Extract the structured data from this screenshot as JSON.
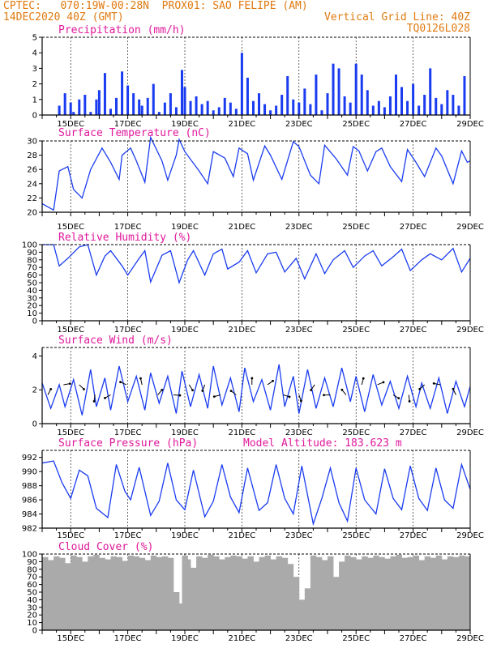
{
  "header": {
    "left_line1": "CPTEC:   070:19W-00:28N  PROX01: SAO FELIPE (AM)",
    "left_line2": "14DEC2020 40Z (GMT)",
    "right_line2": "Vertical Grid Line: 40Z",
    "right_line3": "TQ0126L028"
  },
  "colors": {
    "header": "#e07a10",
    "title": "#e0189b",
    "series": "#1a3cf0",
    "cloud": "#aaaaaa"
  },
  "chart_data": [
    {
      "type": "bar",
      "id": "precip",
      "title": "Precipitation (mm/h)",
      "ylim": [
        0,
        5
      ],
      "yticks": [
        0,
        1,
        2,
        3,
        4,
        5
      ],
      "xticks": [
        "15DEC",
        "17DEC",
        "19DEC",
        "21DEC",
        "23DEC",
        "25DEC",
        "27DEC",
        "29DEC"
      ],
      "x": [
        14.6,
        14.8,
        15.0,
        15.1,
        15.3,
        15.5,
        15.7,
        15.9,
        16.0,
        16.2,
        16.4,
        16.6,
        16.8,
        17.0,
        17.2,
        17.4,
        17.5,
        17.7,
        17.9,
        18.1,
        18.3,
        18.5,
        18.7,
        18.9,
        19.0,
        19.2,
        19.4,
        19.6,
        19.8,
        20.0,
        20.2,
        20.4,
        20.6,
        20.8,
        21.0,
        21.2,
        21.4,
        21.6,
        21.8,
        22.0,
        22.2,
        22.4,
        22.6,
        22.8,
        23.0,
        23.2,
        23.4,
        23.6,
        23.8,
        24.0,
        24.2,
        24.4,
        24.6,
        24.8,
        25.0,
        25.2,
        25.4,
        25.6,
        25.8,
        26.0,
        26.2,
        26.4,
        26.6,
        26.8,
        27.0,
        27.2,
        27.4,
        27.6,
        27.8,
        28.0,
        28.2,
        28.4,
        28.6,
        28.8
      ],
      "values": [
        0.6,
        1.4,
        0.8,
        0.2,
        1.0,
        1.3,
        0.2,
        1.0,
        1.6,
        2.7,
        0.4,
        1.1,
        2.8,
        1.9,
        1.4,
        1.0,
        0.6,
        1.1,
        2.0,
        0.2,
        0.8,
        1.4,
        0.5,
        2.9,
        1.8,
        0.9,
        1.2,
        0.7,
        0.9,
        0.3,
        0.5,
        1.1,
        0.8,
        0.4,
        4.0,
        2.4,
        0.9,
        1.4,
        0.7,
        0.3,
        0.6,
        1.3,
        2.5,
        1.0,
        0.8,
        1.7,
        0.7,
        2.6,
        0.3,
        1.4,
        3.3,
        3.0,
        1.2,
        0.8,
        3.3,
        2.6,
        1.6,
        0.6,
        0.9,
        0.5,
        1.2,
        2.6,
        1.8,
        0.9,
        2.0,
        0.6,
        1.3,
        3.0,
        1.1,
        0.7,
        1.6,
        1.3,
        0.6,
        2.5
      ]
    },
    {
      "type": "line",
      "id": "temp",
      "title": "Surface Temperature (nC)",
      "ylim": [
        20,
        30
      ],
      "yticks": [
        20,
        22,
        24,
        26,
        28,
        30
      ],
      "xticks": [
        "15DEC",
        "17DEC",
        "19DEC",
        "21DEC",
        "23DEC",
        "25DEC",
        "27DEC",
        "29DEC"
      ],
      "x": [
        14.0,
        14.4,
        14.6,
        14.9,
        15.1,
        15.4,
        15.7,
        16.1,
        16.4,
        16.7,
        16.8,
        17.1,
        17.3,
        17.6,
        17.8,
        18.2,
        18.4,
        18.7,
        18.8,
        19.0,
        19.5,
        19.8,
        20.0,
        20.4,
        20.7,
        20.9,
        21.2,
        21.4,
        21.8,
        22.0,
        22.4,
        22.8,
        23.0,
        23.4,
        23.7,
        23.9,
        24.3,
        24.7,
        24.9,
        25.1,
        25.4,
        25.7,
        25.9,
        26.2,
        26.6,
        26.8,
        27.1,
        27.4,
        27.8,
        28.0,
        28.4,
        28.7,
        28.9,
        29.0
      ],
      "values": [
        21.2,
        20.3,
        25.8,
        26.4,
        23.2,
        22.0,
        26.0,
        29.0,
        27.0,
        24.6,
        28.0,
        29.0,
        27.2,
        24.2,
        30.5,
        27.2,
        24.5,
        28.0,
        30.2,
        28.5,
        25.8,
        24.0,
        28.5,
        27.6,
        25.0,
        29.0,
        28.2,
        24.5,
        29.3,
        28.0,
        24.6,
        29.9,
        29.2,
        25.2,
        24.0,
        29.4,
        27.5,
        25.2,
        29.2,
        28.6,
        25.8,
        28.5,
        29.0,
        26.4,
        24.3,
        28.8,
        27.0,
        25.0,
        29.0,
        27.9,
        24.0,
        28.6,
        27.0,
        27.2
      ]
    },
    {
      "type": "line",
      "id": "rh",
      "title": "Relative Humidity (%)",
      "ylim": [
        0,
        100
      ],
      "yticks": [
        0,
        10,
        20,
        30,
        40,
        50,
        60,
        70,
        80,
        90,
        100
      ],
      "xticks": [
        "15DEC",
        "17DEC",
        "19DEC",
        "21DEC",
        "23DEC",
        "25DEC",
        "27DEC",
        "29DEC"
      ],
      "x": [
        14.0,
        14.4,
        14.6,
        14.9,
        15.3,
        15.6,
        15.9,
        16.2,
        16.4,
        16.8,
        17.0,
        17.4,
        17.6,
        17.8,
        18.2,
        18.5,
        18.8,
        19.1,
        19.3,
        19.7,
        20.0,
        20.3,
        20.5,
        20.9,
        21.2,
        21.5,
        21.9,
        22.2,
        22.5,
        22.9,
        23.2,
        23.6,
        23.9,
        24.2,
        24.6,
        24.9,
        25.3,
        25.6,
        25.9,
        26.3,
        26.6,
        26.9,
        27.3,
        27.6,
        28.0,
        28.4,
        28.7,
        29.0
      ],
      "values": [
        100,
        100,
        72,
        82,
        97,
        100,
        60,
        85,
        92,
        72,
        60,
        82,
        92,
        51,
        86,
        92,
        50,
        80,
        92,
        60,
        88,
        94,
        68,
        77,
        92,
        63,
        88,
        90,
        64,
        82,
        55,
        88,
        62,
        80,
        92,
        70,
        85,
        92,
        72,
        84,
        94,
        66,
        80,
        88,
        80,
        95,
        64,
        82
      ]
    },
    {
      "type": "line",
      "id": "wind",
      "title": "Surface Wind (m/s)",
      "ylim": [
        0,
        4.5
      ],
      "yticks": [
        0,
        2,
        4
      ],
      "xticks": [
        "15DEC",
        "17DEC",
        "19DEC",
        "21DEC",
        "23DEC",
        "25DEC",
        "27DEC",
        "29DEC"
      ],
      "x": [
        14.0,
        14.3,
        14.6,
        14.8,
        15.1,
        15.4,
        15.7,
        15.9,
        16.2,
        16.4,
        16.7,
        17.0,
        17.3,
        17.6,
        17.8,
        18.1,
        18.4,
        18.7,
        18.9,
        19.2,
        19.5,
        19.8,
        20.0,
        20.3,
        20.6,
        20.9,
        21.1,
        21.4,
        21.7,
        22.0,
        22.3,
        22.5,
        22.8,
        23.0,
        23.3,
        23.6,
        23.9,
        24.2,
        24.5,
        24.8,
        25.0,
        25.3,
        25.6,
        25.9,
        26.2,
        26.5,
        26.8,
        27.1,
        27.3,
        27.6,
        27.9,
        28.2,
        28.5,
        28.8,
        29.0
      ],
      "values": [
        2.4,
        0.9,
        2.3,
        1.0,
        2.6,
        0.5,
        3.2,
        1.0,
        2.7,
        0.8,
        3.4,
        1.3,
        2.8,
        0.8,
        3.0,
        1.2,
        2.8,
        0.6,
        3.1,
        1.0,
        2.9,
        0.9,
        3.4,
        1.1,
        2.7,
        0.7,
        3.3,
        1.3,
        2.6,
        0.8,
        3.5,
        1.0,
        2.8,
        0.6,
        3.2,
        0.9,
        2.7,
        1.0,
        3.3,
        1.3,
        2.8,
        0.7,
        2.9,
        1.1,
        2.5,
        0.9,
        2.8,
        1.0,
        2.4,
        0.9,
        2.7,
        0.6,
        2.5,
        1.0,
        2.2
      ]
    },
    {
      "type": "line",
      "id": "pressure",
      "title": "Surface Pressure (hPa)",
      "annotation": "Model Altitude: 183.623 m",
      "ylim": [
        982,
        993
      ],
      "yticks": [
        982,
        984,
        986,
        988,
        990,
        992
      ],
      "xticks": [
        "15DEC",
        "17DEC",
        "19DEC",
        "21DEC",
        "23DEC",
        "25DEC",
        "27DEC",
        "29DEC"
      ],
      "x": [
        14.0,
        14.4,
        14.7,
        15.0,
        15.3,
        15.6,
        15.9,
        16.3,
        16.6,
        16.9,
        17.1,
        17.4,
        17.8,
        18.1,
        18.4,
        18.7,
        19.0,
        19.3,
        19.7,
        20.0,
        20.3,
        20.6,
        20.9,
        21.2,
        21.6,
        21.9,
        22.2,
        22.5,
        22.8,
        23.1,
        23.5,
        23.8,
        24.1,
        24.4,
        24.7,
        25.0,
        25.3,
        25.7,
        26.0,
        26.3,
        26.6,
        26.9,
        27.2,
        27.5,
        27.8,
        28.1,
        28.4,
        28.7,
        29.0
      ],
      "values": [
        991.2,
        991.5,
        988.4,
        986.2,
        990.2,
        989.4,
        984.8,
        983.5,
        991.0,
        987.2,
        986.0,
        990.6,
        983.8,
        985.8,
        991.2,
        986.0,
        984.6,
        990.2,
        983.6,
        985.8,
        991.0,
        986.4,
        984.2,
        990.5,
        984.5,
        985.6,
        991.0,
        986.2,
        984.0,
        990.8,
        982.6,
        986.2,
        990.5,
        985.6,
        983.0,
        990.5,
        986.0,
        984.0,
        990.4,
        986.2,
        984.6,
        990.8,
        986.2,
        984.5,
        990.5,
        986.0,
        984.8,
        991.0,
        987.5
      ]
    },
    {
      "type": "bar",
      "id": "cloud",
      "title": "Cloud Cover (%)",
      "ylim": [
        0,
        100
      ],
      "yticks": [
        0,
        10,
        20,
        30,
        40,
        50,
        60,
        70,
        80,
        90,
        100
      ],
      "xticks": [
        "15DEC",
        "17DEC",
        "19DEC",
        "21DEC",
        "23DEC",
        "25DEC",
        "27DEC",
        "29DEC"
      ],
      "x": [
        14.0,
        14.2,
        14.4,
        14.6,
        14.8,
        15.0,
        15.2,
        15.4,
        15.6,
        15.8,
        16.0,
        16.2,
        16.4,
        16.6,
        16.8,
        17.0,
        17.2,
        17.4,
        17.6,
        17.8,
        18.0,
        18.2,
        18.4,
        18.6,
        18.7,
        18.8,
        18.9,
        19.0,
        19.2,
        19.4,
        19.6,
        19.8,
        20.0,
        20.2,
        20.4,
        20.6,
        20.8,
        21.0,
        21.2,
        21.4,
        21.6,
        21.8,
        22.0,
        22.2,
        22.4,
        22.6,
        22.8,
        23.0,
        23.2,
        23.4,
        23.6,
        23.8,
        24.0,
        24.2,
        24.4,
        24.6,
        24.8,
        25.0,
        25.2,
        25.4,
        25.6,
        25.8,
        26.0,
        26.2,
        26.4,
        26.6,
        26.8,
        27.0,
        27.2,
        27.4,
        27.6,
        27.8,
        28.0,
        28.2,
        28.4,
        28.6,
        28.8
      ],
      "values": [
        96,
        92,
        97,
        95,
        88,
        98,
        96,
        90,
        97,
        99,
        95,
        93,
        97,
        96,
        91,
        98,
        97,
        95,
        92,
        98,
        96,
        97,
        95,
        50,
        8,
        35,
        98,
        93,
        82,
        97,
        95,
        99,
        97,
        93,
        96,
        98,
        97,
        94,
        97,
        90,
        96,
        98,
        93,
        97,
        95,
        87,
        70,
        40,
        55,
        98,
        96,
        92,
        97,
        70,
        90,
        98,
        96,
        93,
        97,
        95,
        98,
        96,
        94,
        97,
        99,
        95,
        96,
        98,
        92,
        97,
        95,
        98,
        93,
        97,
        96,
        98,
        97
      ]
    }
  ]
}
